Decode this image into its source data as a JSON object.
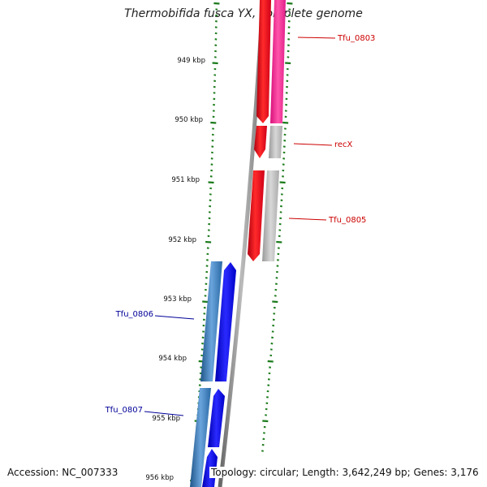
{
  "title": "Thermobifida fusca YX, complete genome",
  "footer": {
    "accession": "Accession: NC_007333",
    "summary": "Topology: circular; Length: 3,642,249 bp; Genes: 3,176"
  },
  "scale": {
    "unit": "kbp",
    "ticks": [
      {
        "label": "949 kbp"
      },
      {
        "label": "950 kbp"
      },
      {
        "label": "951 kbp"
      },
      {
        "label": "952 kbp"
      },
      {
        "label": "953 kbp"
      },
      {
        "label": "954 kbp"
      },
      {
        "label": "955 kbp"
      },
      {
        "label": "956 kbp"
      }
    ],
    "tick_color": "#1a7a1a"
  },
  "backbone_color": "#888888",
  "genes": [
    {
      "id": "Tfu_0803",
      "label": "Tfu_0803",
      "color": "#e8001a",
      "cds_color": "#ff3399",
      "label_color": "#cc0000"
    },
    {
      "id": "recX",
      "label": "recX",
      "color": "#e8001a",
      "cds_color": "#bbbbbb",
      "label_color": "#cc0000"
    },
    {
      "id": "Tfu_0805",
      "label": "Tfu_0805",
      "color": "#e8001a",
      "cds_color": "#bbbbbb",
      "label_color": "#cc0000"
    },
    {
      "id": "Tfu_0806",
      "label": "Tfu_0806",
      "color": "#0000ee",
      "cds_color": "#3a78b8",
      "label_color": "#000099"
    },
    {
      "id": "Tfu_0807",
      "label": "Tfu_0807",
      "color": "#0000ee",
      "cds_color": "#3a78b8",
      "label_color": "#000099"
    }
  ]
}
